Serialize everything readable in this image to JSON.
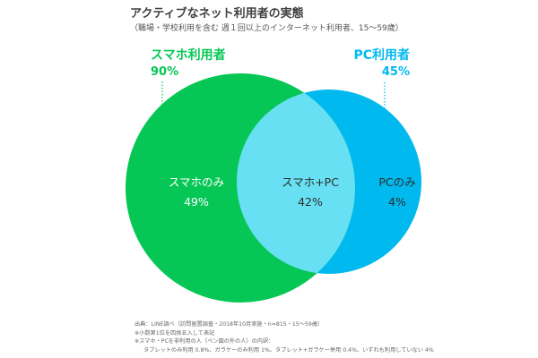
{
  "header": {
    "title": "アクティブなネット利用者の実態",
    "subtitle": "（職場・学校利用を含む 週１回以上のインターネット利用者、15〜59歳）"
  },
  "venn": {
    "left_set": {
      "name": "スマホ利用者",
      "total": "90%",
      "only_label": "スマホのみ",
      "only_value": "49%",
      "share": 0.9,
      "color": "#06c755"
    },
    "right_set": {
      "name": "PC利用者",
      "total": "45%",
      "only_label": "PCのみ",
      "only_value": "4%",
      "share": 0.45,
      "color": "#00b9ef"
    },
    "overlap": {
      "label": "スマホ+PC",
      "value": "42%",
      "share": 0.42,
      "color": "#66e0f2"
    }
  },
  "footnotes": {
    "source": "出典：LINE調べ（訪問留置調査・2018年10月実施・n=815・15〜59歳）",
    "rounding": "※小数第1位を四捨五入して表記",
    "note": "※スマホ・PCを非利用の人（ベン図の外の人）の内訳：",
    "detail": "タブレットのみ利用 0.8%、ガラケーのみ利用 1%、タブレット+ガラケー併用 0.4%、いずれも利用していない 4%"
  }
}
